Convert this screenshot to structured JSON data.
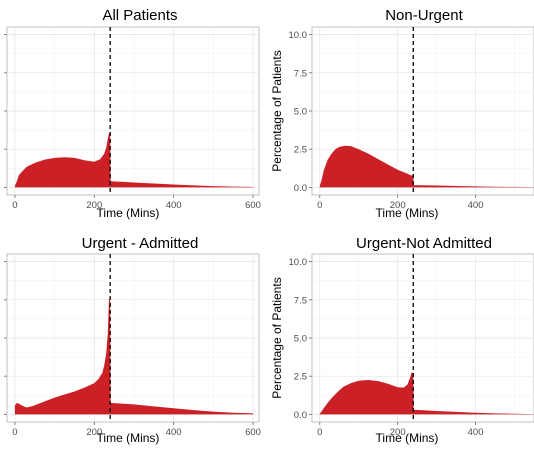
{
  "chart_data": [
    {
      "type": "area",
      "title": "All Patients",
      "xlabel": "Time (Mins)",
      "ylabel": "",
      "xlim": [
        -20,
        615
      ],
      "ylim": [
        -0.5,
        10.5
      ],
      "xticks": [
        "0",
        "200",
        "400",
        "600"
      ],
      "yticks": [],
      "cutoff": 240,
      "color": "#cc2027",
      "x": [
        0,
        5,
        10,
        20,
        30,
        50,
        75,
        100,
        125,
        150,
        175,
        200,
        215,
        225,
        230,
        234,
        237,
        240,
        241,
        260,
        300,
        350,
        400,
        450,
        500,
        550,
        600
      ],
      "y": [
        0.1,
        0.4,
        0.8,
        1.1,
        1.35,
        1.6,
        1.82,
        1.93,
        1.97,
        1.93,
        1.78,
        1.68,
        1.85,
        2.2,
        2.6,
        3.2,
        3.55,
        3.45,
        0.4,
        0.38,
        0.32,
        0.25,
        0.19,
        0.13,
        0.08,
        0.05,
        0.03
      ]
    },
    {
      "type": "area",
      "title": "Non-Urgent",
      "xlabel": "Time (Mins)",
      "ylabel": "Percentage of Patients",
      "xlim": [
        -20,
        550
      ],
      "ylim": [
        -0.5,
        10.5
      ],
      "xticks": [
        "0",
        "200",
        "400"
      ],
      "yticks": [
        "0.0",
        "2.5",
        "5.0",
        "7.5",
        "10.0"
      ],
      "cutoff": 240,
      "color": "#cc2027",
      "x": [
        0,
        5,
        10,
        20,
        30,
        40,
        50,
        65,
        80,
        100,
        125,
        150,
        175,
        200,
        220,
        235,
        240,
        241,
        260,
        300,
        350,
        400,
        450,
        500,
        550
      ],
      "y": [
        0.1,
        0.5,
        1.1,
        1.8,
        2.2,
        2.5,
        2.65,
        2.72,
        2.7,
        2.5,
        2.2,
        1.85,
        1.5,
        1.15,
        0.95,
        0.78,
        0.8,
        0.15,
        0.14,
        0.12,
        0.09,
        0.06,
        0.04,
        0.03,
        0.02
      ]
    },
    {
      "type": "area",
      "title": "Urgent - Admitted",
      "xlabel": "Time (Mins)",
      "ylabel": "",
      "xlim": [
        -20,
        615
      ],
      "ylim": [
        -0.5,
        10.5
      ],
      "xticks": [
        "0",
        "200",
        "400",
        "600"
      ],
      "yticks": [],
      "cutoff": 240,
      "color": "#cc2027",
      "x": [
        0,
        5,
        10,
        20,
        30,
        45,
        60,
        80,
        100,
        125,
        150,
        175,
        200,
        210,
        220,
        225,
        230,
        234,
        237,
        240,
        241,
        260,
        300,
        350,
        400,
        450,
        500,
        550,
        600
      ],
      "y": [
        0.6,
        0.75,
        0.7,
        0.55,
        0.45,
        0.55,
        0.7,
        0.9,
        1.1,
        1.3,
        1.5,
        1.75,
        2.05,
        2.3,
        2.7,
        3.2,
        4.0,
        5.3,
        7.6,
        7.4,
        0.75,
        0.72,
        0.65,
        0.52,
        0.4,
        0.28,
        0.18,
        0.1,
        0.06
      ]
    },
    {
      "type": "area",
      "title": "Urgent-Not Admitted",
      "xlabel": "Time (Mins)",
      "ylabel": "Percentage of Patients",
      "xlim": [
        -20,
        550
      ],
      "ylim": [
        -0.5,
        10.5
      ],
      "xticks": [
        "0",
        "200",
        "400"
      ],
      "yticks": [
        "0.0",
        "2.5",
        "5.0",
        "7.5",
        "10.0"
      ],
      "cutoff": 240,
      "color": "#cc2027",
      "x": [
        0,
        5,
        10,
        20,
        30,
        45,
        60,
        80,
        100,
        125,
        150,
        175,
        200,
        215,
        225,
        232,
        236,
        240,
        241,
        260,
        300,
        350,
        400,
        450,
        500,
        550
      ],
      "y": [
        0.05,
        0.2,
        0.4,
        0.75,
        1.05,
        1.45,
        1.8,
        2.05,
        2.2,
        2.25,
        2.18,
        2.0,
        1.78,
        1.75,
        1.95,
        2.4,
        2.75,
        2.7,
        0.3,
        0.28,
        0.22,
        0.16,
        0.1,
        0.06,
        0.04,
        0.02
      ]
    }
  ]
}
